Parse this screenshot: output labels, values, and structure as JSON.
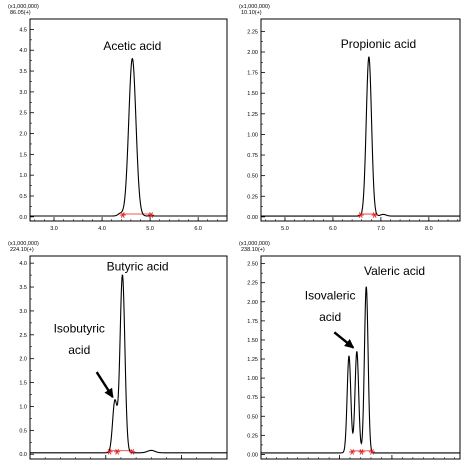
{
  "chart_data": [
    {
      "type": "line",
      "scale_label": "(x1,000,000)",
      "channel_label": "86.05(+)",
      "x_ticks": [
        3.0,
        4.0,
        5.0,
        6.0
      ],
      "x_tick_labels": [
        "3.0",
        "4.0",
        "5.0",
        "6.0"
      ],
      "y_ticks": [
        0.0,
        0.5,
        1.0,
        1.5,
        2.0,
        2.5,
        3.0,
        3.5,
        4.0,
        4.5
      ],
      "y_tick_labels": [
        "0.0",
        "0.5",
        "1.0",
        "1.5",
        "2.0",
        "2.5",
        "3.0",
        "3.5",
        "4.0",
        "4.5"
      ],
      "xlim": [
        2.5,
        6.6
      ],
      "ylim": [
        -0.1,
        4.75
      ],
      "baseline": 0.02,
      "peaks": [
        {
          "x": 4.38,
          "height": 0.06,
          "width": 0.05
        },
        {
          "x": 4.63,
          "height": 3.78,
          "width": 0.075
        }
      ],
      "integration_marks": [
        4.43,
        5.02
      ],
      "annotations": [
        {
          "text": "Acetic acid",
          "x": 4.63,
          "y": 4.0
        }
      ],
      "arrows": []
    },
    {
      "type": "line",
      "scale_label": "(x1,000,000)",
      "channel_label": "10.10(+)",
      "x_ticks": [
        5.0,
        6.0,
        7.0,
        8.0
      ],
      "x_tick_labels": [
        "5.0",
        "6.0",
        "7.0",
        "8.0"
      ],
      "y_ticks": [
        0.0,
        0.25,
        0.5,
        0.75,
        1.0,
        1.25,
        1.5,
        1.75,
        2.0,
        2.25
      ],
      "y_tick_labels": [
        "0.00",
        "0.25",
        "0.50",
        "0.75",
        "1.00",
        "1.25",
        "1.50",
        "1.75",
        "2.00",
        "2.25"
      ],
      "xlim": [
        4.5,
        8.65
      ],
      "ylim": [
        -0.05,
        2.4
      ],
      "baseline": 0.01,
      "peaks": [
        {
          "x": 6.75,
          "height": 1.93,
          "width": 0.055
        },
        {
          "x": 7.05,
          "height": 0.02,
          "width": 0.06
        }
      ],
      "integration_marks": [
        6.58,
        6.87
      ],
      "annotations": [
        {
          "text": "Propionic acid",
          "x": 6.95,
          "y": 2.05
        }
      ],
      "arrows": []
    },
    {
      "type": "line",
      "scale_label": "(x1,000,000)",
      "channel_label": "224.10(+)",
      "x_ticks": [
        6.0,
        7.0
      ],
      "x_tick_labels": [
        "",
        ""
      ],
      "y_ticks": [
        0.0,
        0.5,
        1.0,
        1.5,
        2.0,
        2.5,
        3.0,
        3.5,
        4.0
      ],
      "y_tick_labels": [
        "0.0",
        "0.5",
        "1.0",
        "1.5",
        "2.0",
        "2.5",
        "3.0",
        "3.5",
        "4.0"
      ],
      "xlim": [
        5.0,
        7.6
      ],
      "ylim": [
        -0.1,
        4.15
      ],
      "baseline": 0.03,
      "peaks": [
        {
          "x": 6.12,
          "height": 1.08,
          "width": 0.03
        },
        {
          "x": 6.22,
          "height": 3.72,
          "width": 0.032
        },
        {
          "x": 6.6,
          "height": 0.05,
          "width": 0.05
        }
      ],
      "integration_marks": [
        6.05,
        6.15,
        6.35
      ],
      "annotations": [
        {
          "text": "Butyric acid",
          "x": 6.42,
          "y": 3.85
        },
        {
          "text": "Isobutyric",
          "x": 5.65,
          "y": 2.55
        },
        {
          "text": "acid",
          "x": 5.65,
          "y": 2.1
        }
      ],
      "arrows": [
        {
          "from": [
            5.88,
            1.72
          ],
          "to": [
            6.09,
            1.2
          ]
        }
      ]
    },
    {
      "type": "line",
      "scale_label": "(x1,000,000)",
      "channel_label": "238.10(+)",
      "x_ticks": [
        8.0,
        9.0
      ],
      "x_tick_labels": [
        "",
        ""
      ],
      "y_ticks": [
        0.0,
        0.25,
        0.5,
        0.75,
        1.0,
        1.25,
        1.5,
        1.75,
        2.0,
        2.25,
        2.5
      ],
      "y_tick_labels": [
        "0.00",
        "0.25",
        "0.50",
        "0.75",
        "1.00",
        "1.25",
        "1.50",
        "1.75",
        "2.00",
        "2.25",
        "2.50"
      ],
      "xlim": [
        6.5,
        10.3
      ],
      "ylim": [
        -0.06,
        2.6
      ],
      "baseline": 0.02,
      "peaks": [
        {
          "x": 8.18,
          "height": 1.27,
          "width": 0.035
        },
        {
          "x": 8.33,
          "height": 1.33,
          "width": 0.035
        },
        {
          "x": 8.51,
          "height": 2.18,
          "width": 0.035
        }
      ],
      "integration_marks": [
        8.24,
        8.42,
        8.62
      ],
      "annotations": [
        {
          "text": "Valeric acid",
          "x": 9.05,
          "y": 2.35
        },
        {
          "text": "Isovaleric",
          "x": 7.82,
          "y": 2.03
        },
        {
          "text": "acid",
          "x": 7.82,
          "y": 1.75
        }
      ],
      "arrows": [
        {
          "from": [
            7.9,
            1.6
          ],
          "to": [
            8.26,
            1.4
          ]
        }
      ]
    }
  ]
}
